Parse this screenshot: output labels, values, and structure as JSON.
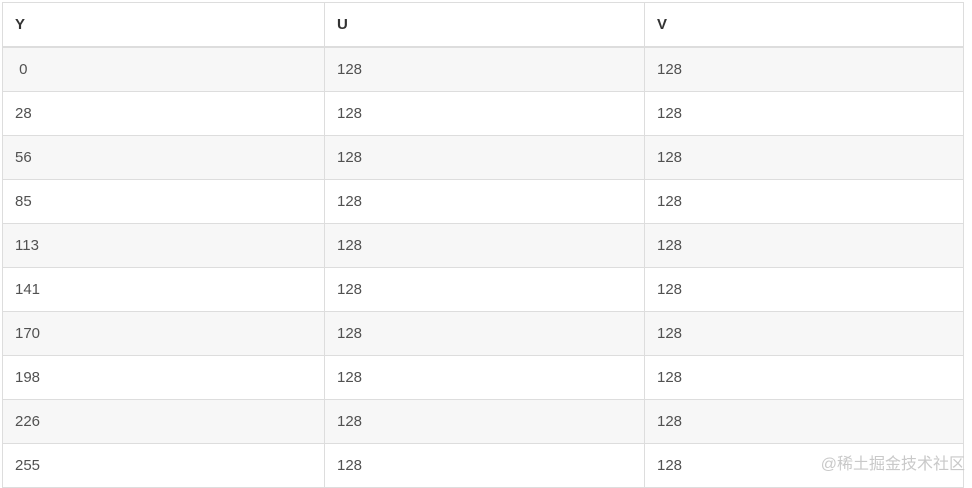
{
  "colors": {
    "page_background": "#ffffff",
    "border": "#dddddd",
    "row_stripe": "#f7f7f7",
    "header_text": "#333333",
    "cell_text": "#515151",
    "watermark_text": "#c9c9c9"
  },
  "table": {
    "columns": [
      "Y",
      "U",
      "V"
    ],
    "rows": [
      [
        " 0",
        "128",
        "128"
      ],
      [
        "28",
        "128",
        "128"
      ],
      [
        "56",
        "128",
        "128"
      ],
      [
        "85",
        "128",
        "128"
      ],
      [
        "113",
        "128",
        "128"
      ],
      [
        "141",
        "128",
        "128"
      ],
      [
        "170",
        "128",
        "128"
      ],
      [
        "198",
        "128",
        "128"
      ],
      [
        "226",
        "128",
        "128"
      ],
      [
        "255",
        "128",
        "128"
      ]
    ]
  },
  "watermark": {
    "text": "@稀土掘金技术社区"
  }
}
